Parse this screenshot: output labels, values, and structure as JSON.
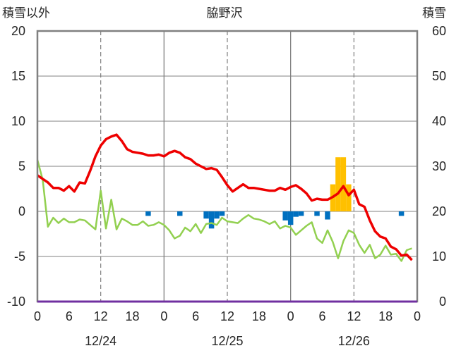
{
  "chart_data": {
    "type": "line",
    "title": "脇野沢",
    "left_label": "積雪以外",
    "right_label": "積雪",
    "x_ticks": [
      "0",
      "6",
      "12",
      "18",
      "0",
      "6",
      "12",
      "18",
      "0",
      "6",
      "12",
      "18",
      "0"
    ],
    "date_labels": [
      "12/24",
      "12/25",
      "12/26"
    ],
    "y_left": {
      "min": -10,
      "max": 20,
      "ticks": [
        "20",
        "15",
        "10",
        "5",
        "0",
        "-5",
        "-10"
      ]
    },
    "y_right": {
      "min": 0,
      "max": 60,
      "ticks": [
        "60",
        "50",
        "40",
        "30",
        "20",
        "10",
        "0"
      ]
    },
    "hours": 72,
    "colors": {
      "red": "#ee0000",
      "green": "#92d050",
      "blue": "#0070c0",
      "orange": "#ffc000",
      "purple": "#7030a0",
      "grid": "#808080"
    },
    "series": [
      {
        "name": "",
        "color": "#ee0000",
        "values": [
          4.0,
          3.6,
          3.2,
          2.6,
          2.6,
          2.3,
          2.8,
          2.2,
          3.2,
          3.1,
          4.5,
          6.1,
          7.3,
          8.0,
          8.3,
          8.5,
          7.8,
          6.9,
          6.6,
          6.5,
          6.4,
          6.2,
          6.2,
          6.3,
          6.1,
          6.5,
          6.7,
          6.5,
          6.0,
          5.8,
          5.3,
          5.0,
          4.7,
          4.8,
          4.6,
          3.8,
          2.9,
          2.2,
          2.6,
          3.0,
          2.6,
          2.6,
          2.5,
          2.4,
          2.3,
          2.3,
          2.6,
          2.4,
          2.7,
          2.9,
          2.5,
          2.0,
          1.2,
          1.4,
          1.3,
          1.3,
          1.6,
          2.0,
          2.8,
          1.8,
          2.4,
          0.8,
          0.5,
          -1.0,
          -2.2,
          -2.8,
          -3.0,
          -3.9,
          -4.2,
          -4.9,
          -4.8,
          -5.4
        ]
      },
      {
        "name": "",
        "color": "#92d050",
        "values": [
          5.7,
          3.5,
          -1.7,
          -0.7,
          -1.3,
          -0.8,
          -1.2,
          -1.2,
          -0.9,
          -1.0,
          -1.5,
          -2.0,
          2.3,
          -1.9,
          1.3,
          -2.0,
          -0.8,
          -1.1,
          -1.5,
          -1.5,
          -1.1,
          -1.6,
          -1.5,
          -1.2,
          -1.5,
          -2.1,
          -3.0,
          -2.7,
          -1.8,
          -2.2,
          -1.4,
          -2.4,
          -1.4,
          -1.3,
          -1.5,
          -0.7,
          -1.1,
          -1.2,
          -1.3,
          -0.8,
          -0.4,
          -0.8,
          -0.9,
          -1.1,
          -1.4,
          -1.1,
          -1.9,
          -1.6,
          -1.8,
          -2.6,
          -2.1,
          -1.6,
          -1.2,
          -3.0,
          -3.5,
          -2.1,
          -3.4,
          -5.2,
          -3.3,
          -2.1,
          -2.4,
          -3.7,
          -4.6,
          -3.7,
          -5.2,
          -4.8,
          -3.8,
          -4.8,
          -4.7,
          -5.5,
          -4.3,
          -4.1
        ]
      },
      {
        "name": "",
        "color": "#0070c0",
        "bars": [
          [
            21,
            -0.5
          ],
          [
            27,
            -0.5
          ],
          [
            32,
            -0.8
          ],
          [
            33,
            -1.9
          ],
          [
            34,
            -0.8
          ],
          [
            35,
            -0.5
          ],
          [
            47,
            -1.0
          ],
          [
            48,
            -1.5
          ],
          [
            49,
            -0.6
          ],
          [
            50,
            -0.5
          ],
          [
            53,
            -0.5
          ],
          [
            55,
            -0.9
          ],
          [
            69,
            -0.5
          ]
        ]
      },
      {
        "name": "",
        "color": "#ffc000",
        "bars": [
          [
            56,
            3
          ],
          [
            57,
            6
          ],
          [
            58,
            6
          ],
          [
            59,
            3
          ]
        ]
      }
    ]
  }
}
